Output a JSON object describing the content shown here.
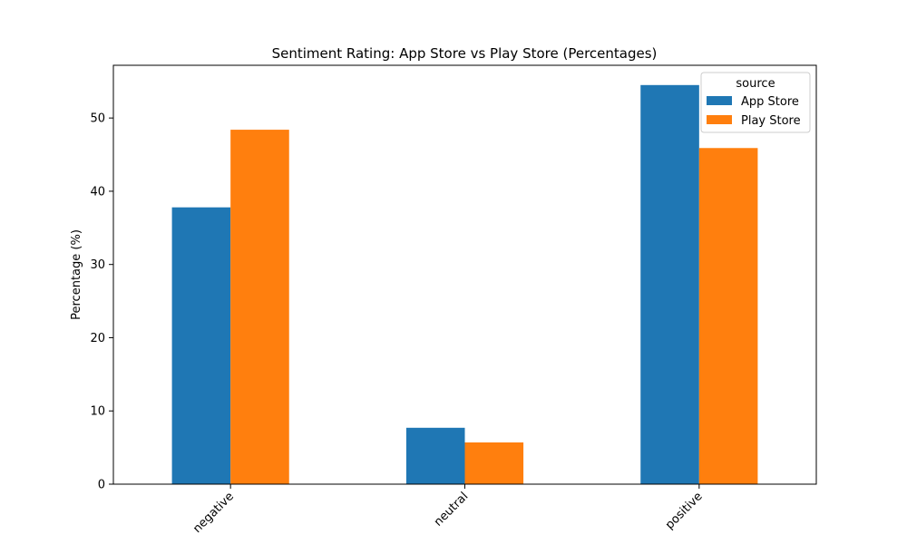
{
  "chart_data": {
    "type": "bar",
    "title": "Sentiment Rating: App Store vs Play Store (Percentages)",
    "xlabel": "",
    "ylabel": "Percentage (%)",
    "categories": [
      "negative",
      "neutral",
      "positive"
    ],
    "series": [
      {
        "name": "App Store",
        "color": "#1f77b4",
        "values": [
          37.8,
          7.7,
          54.5
        ]
      },
      {
        "name": "Play Store",
        "color": "#ff7f0e",
        "values": [
          48.4,
          5.7,
          45.9
        ]
      }
    ],
    "ylim": [
      0,
      57.2
    ],
    "yticks": [
      0,
      10,
      20,
      30,
      40,
      50
    ],
    "legend": {
      "title": "source",
      "position": "top-right"
    },
    "grid": false
  }
}
